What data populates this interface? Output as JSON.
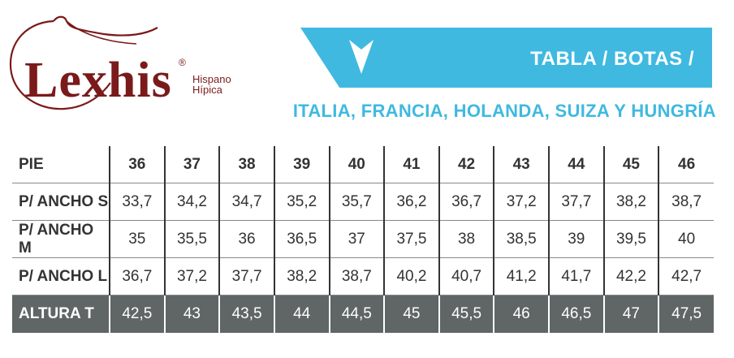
{
  "brand": {
    "name": "Lexhis",
    "registered": "®",
    "subtitle_line1": "Hispano",
    "subtitle_line2": "Hípica",
    "color": "#7a1a1b"
  },
  "banner": {
    "title": "TABLA / BOTAS /",
    "icon": "chevron-down-icon",
    "color": "#3fb9e0"
  },
  "countries": "ITALIA, FRANCIA, HOLANDA, SUIZA Y HUNGRÍA",
  "table": {
    "header_label": "PIE",
    "sizes": [
      "36",
      "37",
      "38",
      "39",
      "40",
      "41",
      "42",
      "43",
      "44",
      "45",
      "46"
    ],
    "rows": [
      {
        "label": "P/ ANCHO S",
        "values": [
          "33,7",
          "34,2",
          "34,7",
          "35,2",
          "35,7",
          "36,2",
          "36,7",
          "37,2",
          "37,7",
          "38,2",
          "38,7"
        ]
      },
      {
        "label": "P/ ANCHO M",
        "values": [
          "35",
          "35,5",
          "36",
          "36,5",
          "37",
          "37,5",
          "38",
          "38,5",
          "39",
          "39,5",
          "40"
        ]
      },
      {
        "label": "P/ ANCHO L",
        "values": [
          "36,7",
          "37,2",
          "37,7",
          "38,2",
          "38,7",
          "40,2",
          "40,7",
          "41,2",
          "41,7",
          "42,2",
          "42,7"
        ]
      }
    ],
    "height_row": {
      "label": "ALTURA T",
      "values": [
        "42,5",
        "43",
        "43,5",
        "44",
        "44,5",
        "45",
        "45,5",
        "46",
        "46,5",
        "47",
        "47,5"
      ]
    },
    "height_row_color": "#606566"
  }
}
